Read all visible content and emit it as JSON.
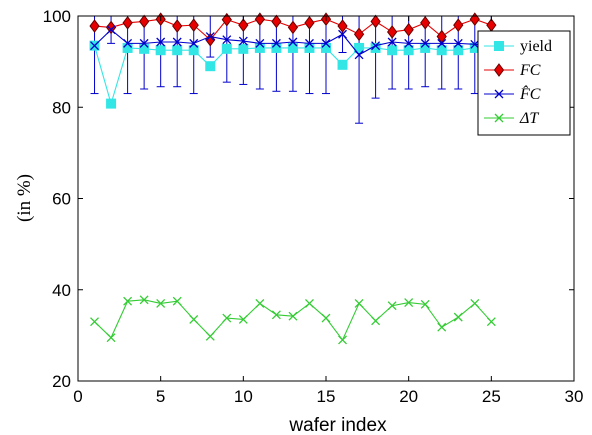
{
  "chart_data": {
    "type": "line",
    "xlabel": "wafer index",
    "ylabel": "(in %)",
    "xlim": [
      0,
      30
    ],
    "ylim": [
      20,
      100
    ],
    "xticks": [
      0,
      5,
      10,
      15,
      20,
      25,
      30
    ],
    "yticks": [
      20,
      40,
      60,
      80,
      100
    ],
    "grid": false,
    "legend_position": "top-right",
    "x": [
      1,
      2,
      3,
      4,
      5,
      6,
      7,
      8,
      9,
      10,
      11,
      12,
      13,
      14,
      15,
      16,
      17,
      18,
      19,
      20,
      21,
      22,
      23,
      24,
      25
    ],
    "series": [
      {
        "name": "yield",
        "color": "#33e6e6",
        "marker": "square",
        "values": [
          93.5,
          80.8,
          93,
          92.8,
          92.5,
          92.5,
          92.5,
          89,
          92.8,
          92.8,
          93,
          93,
          93,
          93,
          93,
          89.3,
          93,
          93,
          92.5,
          92.5,
          93,
          92.5,
          92.5,
          93,
          93
        ]
      },
      {
        "name": "FC",
        "color": "#e60000",
        "marker": "diamond",
        "values": [
          97.8,
          97.5,
          98.5,
          98.8,
          99.3,
          97.8,
          98,
          94.8,
          99.2,
          98,
          99.3,
          98.8,
          97.5,
          98.5,
          99.3,
          97.8,
          96,
          98.8,
          96.5,
          97,
          98.5,
          95.5,
          98,
          99.3,
          98
        ]
      },
      {
        "name": "F̂C",
        "color": "#0000cc",
        "marker": "x",
        "values": [
          93.5,
          97,
          94,
          94,
          94.3,
          94.3,
          94,
          95.5,
          94.8,
          94.5,
          94,
          94,
          94.3,
          94,
          94,
          96,
          91.5,
          93.5,
          94.3,
          94,
          94,
          94,
          94,
          93.8,
          93.5
        ],
        "error_bars": [
          [
            83,
            100
          ],
          [
            94,
            100
          ],
          [
            83,
            100
          ],
          [
            84,
            100
          ],
          [
            84.5,
            100
          ],
          [
            84.5,
            100
          ],
          [
            83,
            100
          ],
          [
            91,
            100
          ],
          [
            85.5,
            100
          ],
          [
            85,
            100
          ],
          [
            84,
            100
          ],
          [
            83.5,
            100
          ],
          [
            83.5,
            100
          ],
          [
            83,
            100
          ],
          [
            83,
            100
          ],
          [
            92,
            100
          ],
          [
            76.5,
            100
          ],
          [
            82,
            100
          ],
          [
            84,
            100
          ],
          [
            84,
            100
          ],
          [
            84.5,
            100
          ],
          [
            84,
            100
          ],
          [
            84,
            100
          ],
          [
            83,
            100
          ],
          [
            83,
            100
          ]
        ]
      },
      {
        "name": "ΔT",
        "color": "#33cc33",
        "marker": "x",
        "values": [
          33,
          29.5,
          37.5,
          37.8,
          37,
          37.5,
          33.5,
          29.8,
          33.8,
          33.5,
          37,
          34.5,
          34.2,
          37,
          33.8,
          29,
          37,
          33.2,
          36.5,
          37.2,
          36.8,
          31.8,
          34,
          37,
          33
        ]
      }
    ]
  }
}
